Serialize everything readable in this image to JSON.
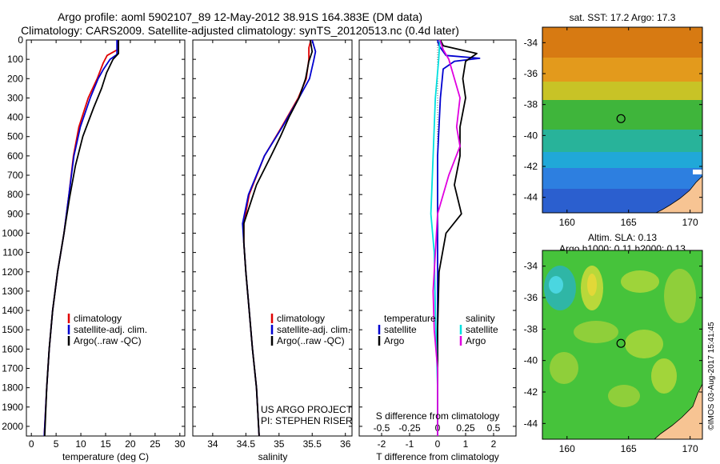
{
  "header": {
    "line1": "Argo profile: aoml 5902107_89 12-May-2012 38.91S 164.383E (DM data)",
    "line2": "Climatology: CARS2009. Satellite-adjusted climatology: synTS_20120513.nc (0.4d later)"
  },
  "side_stamp": "©IMOS 03-Aug-2017 15:41:45",
  "colors": {
    "climatology": "#e00000",
    "satellite": "#0000d0",
    "argo": "#000000",
    "salinity_satellite": "#00e0e0",
    "salinity_argo": "#e000e0",
    "land": "#f7c493"
  },
  "depth_axis": {
    "ticks": [
      0,
      100,
      200,
      300,
      400,
      500,
      600,
      700,
      800,
      900,
      1000,
      1100,
      1200,
      1300,
      1400,
      1500,
      1600,
      1700,
      1800,
      1900,
      2000
    ],
    "range": [
      0,
      2050
    ],
    "reversed": true
  },
  "legend_profiles": [
    "climatology",
    "satellite-adj. clim.",
    "Argo(..raw -QC)"
  ],
  "project": {
    "line1": "US ARGO PROJECT",
    "line2": "PI: STEPHEN RISER"
  },
  "diff_legend": {
    "temperature_title": "temperature",
    "salinity_title": "salinity",
    "satellite": "satellite",
    "argo": "Argo"
  },
  "map_sst": {
    "title": "sat. SST: 17.2 Argo: 17.3"
  },
  "map_sla": {
    "title_line1": "Altim. SLA: 0.13",
    "title_line2": "Argo h1000: 0.11 h2000: 0.13"
  },
  "map_axes": {
    "lon_ticks": [
      160,
      165,
      170
    ],
    "lat_ticks": [
      -34,
      -36,
      -38,
      -40,
      -42,
      -44
    ],
    "lon_range": [
      158,
      171
    ],
    "lat_range": [
      -45,
      -33
    ],
    "float_position": {
      "lon": 164.383,
      "lat": -38.91
    }
  },
  "chart_data": [
    {
      "type": "line",
      "xlabel": "temperature (deg C)",
      "ylabel": "",
      "xlim": [
        -1,
        31
      ],
      "ylim": [
        2050,
        0
      ],
      "x_ticks": [
        0,
        5,
        10,
        15,
        20,
        25,
        30
      ],
      "legend": "lower-left",
      "series": [
        {
          "name": "climatology",
          "points": [
            [
              17.5,
              0
            ],
            [
              17.4,
              50
            ],
            [
              15.3,
              80
            ],
            [
              14.5,
              120
            ],
            [
              13.3,
              200
            ],
            [
              11.5,
              300
            ],
            [
              9.6,
              450
            ],
            [
              8.5,
              600
            ],
            [
              7.6,
              800
            ],
            [
              6.6,
              1000
            ],
            [
              5.3,
              1200
            ],
            [
              4.3,
              1400
            ],
            [
              3.6,
              1600
            ],
            [
              3.1,
              1800
            ],
            [
              2.6,
              2050
            ]
          ]
        },
        {
          "name": "satellite-adj. clim.",
          "points": [
            [
              17.3,
              0
            ],
            [
              17.3,
              75
            ],
            [
              15.9,
              100
            ],
            [
              14.6,
              150
            ],
            [
              13.5,
              200
            ],
            [
              11.9,
              300
            ],
            [
              9.9,
              450
            ],
            [
              8.6,
              600
            ],
            [
              7.6,
              800
            ],
            [
              6.6,
              1000
            ],
            [
              5.3,
              1200
            ],
            [
              4.3,
              1400
            ],
            [
              3.6,
              1600
            ],
            [
              3.1,
              1800
            ],
            [
              2.6,
              2050
            ]
          ]
        },
        {
          "name": "Argo(..raw -QC)",
          "points": [
            [
              17.6,
              0
            ],
            [
              17.6,
              70
            ],
            [
              16.5,
              100
            ],
            [
              15.2,
              170
            ],
            [
              14.2,
              250
            ],
            [
              12.6,
              350
            ],
            [
              10.4,
              500
            ],
            [
              8.9,
              650
            ],
            [
              7.7,
              820
            ],
            [
              6.6,
              1000
            ],
            [
              5.3,
              1200
            ],
            [
              4.3,
              1400
            ],
            [
              3.6,
              1600
            ],
            [
              3.1,
              1800
            ],
            [
              2.7,
              2050
            ]
          ]
        }
      ]
    },
    {
      "type": "line",
      "xlabel": "salinity",
      "ylabel": "",
      "xlim": [
        33.7,
        36.1
      ],
      "ylim": [
        2050,
        0
      ],
      "x_ticks": [
        34,
        34.5,
        35,
        35.5,
        36
      ],
      "legend": "lower-right",
      "series": [
        {
          "name": "climatology",
          "points": [
            [
              35.48,
              0
            ],
            [
              35.45,
              40
            ],
            [
              35.45,
              100
            ],
            [
              35.41,
              200
            ],
            [
              35.29,
              300
            ],
            [
              35.04,
              450
            ],
            [
              34.78,
              600
            ],
            [
              34.55,
              800
            ],
            [
              34.47,
              950
            ],
            [
              34.47,
              1050
            ],
            [
              34.5,
              1200
            ],
            [
              34.55,
              1400
            ],
            [
              34.6,
              1600
            ],
            [
              34.66,
              1800
            ],
            [
              34.7,
              2050
            ]
          ]
        },
        {
          "name": "satellite-adj. clim.",
          "points": [
            [
              35.5,
              0
            ],
            [
              35.55,
              60
            ],
            [
              35.52,
              110
            ],
            [
              35.46,
              200
            ],
            [
              35.3,
              300
            ],
            [
              35.05,
              450
            ],
            [
              34.78,
              600
            ],
            [
              34.54,
              800
            ],
            [
              34.45,
              950
            ],
            [
              34.47,
              1050
            ],
            [
              34.5,
              1200
            ],
            [
              34.55,
              1400
            ],
            [
              34.6,
              1600
            ],
            [
              34.66,
              1800
            ],
            [
              34.7,
              2050
            ]
          ]
        },
        {
          "name": "Argo(..raw -QC)",
          "points": [
            [
              35.47,
              0
            ],
            [
              35.5,
              60
            ],
            [
              35.45,
              110
            ],
            [
              35.4,
              200
            ],
            [
              35.3,
              300
            ],
            [
              35.15,
              400
            ],
            [
              35.02,
              500
            ],
            [
              34.88,
              600
            ],
            [
              34.66,
              750
            ],
            [
              34.47,
              950
            ],
            [
              34.47,
              1050
            ],
            [
              34.5,
              1200
            ],
            [
              34.55,
              1400
            ],
            [
              34.6,
              1600
            ],
            [
              34.66,
              1800
            ],
            [
              34.7,
              2050
            ]
          ]
        }
      ]
    },
    {
      "type": "line",
      "xlabel": "T difference from climatology",
      "x2label": "S difference from climatology",
      "ylabel": "",
      "xlim": [
        -2.8,
        2.8
      ],
      "ylim": [
        2050,
        0
      ],
      "x_ticks": [
        -2,
        -1,
        0,
        1,
        2
      ],
      "x2_ticks": [
        -0.5,
        -0.25,
        0,
        0.25,
        0.5
      ],
      "legend": "lower-center",
      "series": [
        {
          "name": "temperature satellite",
          "points": [
            [
              0,
              0
            ],
            [
              0.05,
              30
            ],
            [
              0.3,
              80
            ],
            [
              1.5,
              95
            ],
            [
              0.6,
              110
            ],
            [
              0.2,
              150
            ],
            [
              0.1,
              300
            ],
            [
              0,
              600
            ],
            [
              0,
              1000
            ],
            [
              0,
              1500
            ],
            [
              0,
              2050
            ]
          ]
        },
        {
          "name": "temperature Argo",
          "points": [
            [
              0.1,
              0
            ],
            [
              0.2,
              30
            ],
            [
              1.4,
              70
            ],
            [
              1.0,
              110
            ],
            [
              0.9,
              200
            ],
            [
              1.0,
              300
            ],
            [
              0.8,
              450
            ],
            [
              0.8,
              600
            ],
            [
              0.6,
              750
            ],
            [
              0.85,
              900
            ],
            [
              0.3,
              1000
            ],
            [
              0.05,
              1200
            ],
            [
              0,
              1500
            ],
            [
              0,
              2050
            ]
          ]
        },
        {
          "name": "salinity satellite",
          "points": [
            [
              0.02,
              0
            ],
            [
              0.01,
              100
            ],
            [
              -0.02,
              300
            ],
            [
              -0.04,
              600
            ],
            [
              -0.06,
              900
            ],
            [
              -0.03,
              1100
            ],
            [
              -0.02,
              1400
            ],
            [
              0,
              1800
            ],
            [
              0,
              2050
            ]
          ]
        },
        {
          "name": "salinity Argo",
          "points": [
            [
              0.02,
              0
            ],
            [
              0.05,
              50
            ],
            [
              0.1,
              100
            ],
            [
              0.15,
              200
            ],
            [
              0.2,
              300
            ],
            [
              0.17,
              450
            ],
            [
              0.2,
              550
            ],
            [
              0.1,
              700
            ],
            [
              0,
              900
            ],
            [
              -0.02,
              1100
            ],
            [
              -0.04,
              1300
            ],
            [
              -0.03,
              1500
            ],
            [
              0,
              1700
            ],
            [
              0,
              2050
            ]
          ]
        }
      ]
    }
  ]
}
